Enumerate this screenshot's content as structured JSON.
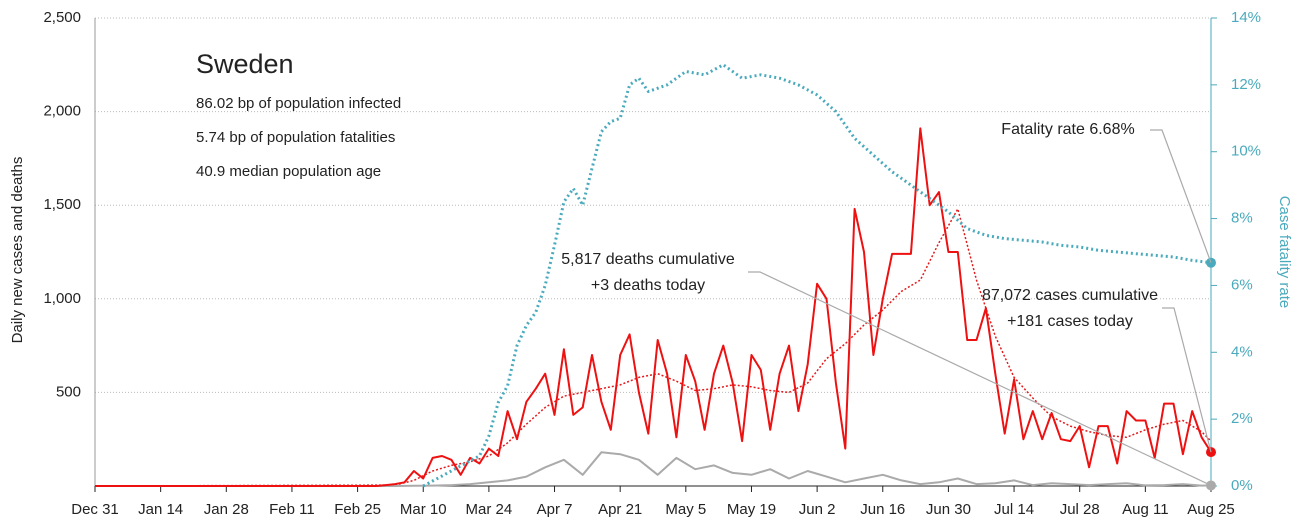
{
  "chart_data": {
    "type": "line",
    "title": "Sweden",
    "subtitle_lines": [
      "86.02 bp of population infected",
      "5.74 bp of population fatalities",
      "40.9 median population age"
    ],
    "ylabel": "Daily new cases and deaths",
    "y2label": "Case fatality rate",
    "xlim": [
      0,
      238
    ],
    "xticks": [
      {
        "value": 0,
        "label": "Dec 31"
      },
      {
        "value": 14,
        "label": "Jan 14"
      },
      {
        "value": 28,
        "label": "Jan 28"
      },
      {
        "value": 42,
        "label": "Feb 11"
      },
      {
        "value": 56,
        "label": "Feb 25"
      },
      {
        "value": 70,
        "label": "Mar 10"
      },
      {
        "value": 84,
        "label": "Mar 24"
      },
      {
        "value": 98,
        "label": "Apr 7"
      },
      {
        "value": 112,
        "label": "Apr 21"
      },
      {
        "value": 126,
        "label": "May 5"
      },
      {
        "value": 140,
        "label": "May 19"
      },
      {
        "value": 154,
        "label": "Jun 2"
      },
      {
        "value": 168,
        "label": "Jun 16"
      },
      {
        "value": 182,
        "label": "Jun 30"
      },
      {
        "value": 196,
        "label": "Jul 14"
      },
      {
        "value": 210,
        "label": "Jul 28"
      },
      {
        "value": 224,
        "label": "Aug 11"
      },
      {
        "value": 238,
        "label": "Aug 25"
      }
    ],
    "ylim": [
      0,
      2500
    ],
    "yticks": [
      {
        "value": 500,
        "label": "500"
      },
      {
        "value": 1000,
        "label": "1,000"
      },
      {
        "value": 1500,
        "label": "1,500"
      },
      {
        "value": 2000,
        "label": "2,000"
      },
      {
        "value": 2500,
        "label": "2,500"
      }
    ],
    "y2lim": [
      0,
      14
    ],
    "y2ticks": [
      {
        "value": 0,
        "label": "0%"
      },
      {
        "value": 2,
        "label": "2%"
      },
      {
        "value": 4,
        "label": "4%"
      },
      {
        "value": 6,
        "label": "6%"
      },
      {
        "value": 8,
        "label": "8%"
      },
      {
        "value": 10,
        "label": "10%"
      },
      {
        "value": 12,
        "label": "12%"
      },
      {
        "value": 14,
        "label": "14%"
      }
    ],
    "grid": true,
    "series": [
      {
        "color": "#e41a1c",
        "style": "dotted",
        "width": 1.5,
        "x": [
          0,
          64,
          68,
          72,
          76,
          80,
          84,
          88,
          92,
          96,
          100,
          104,
          108,
          112,
          116,
          120,
          124,
          128,
          132,
          136,
          140,
          144,
          148,
          152,
          156,
          160,
          164,
          168,
          172,
          176,
          180,
          184,
          188,
          192,
          196,
          200,
          204,
          208,
          212,
          216,
          220,
          224,
          228,
          232,
          236,
          238
        ],
        "values": [
          0,
          5,
          30,
          80,
          110,
          130,
          160,
          230,
          330,
          420,
          480,
          500,
          520,
          540,
          580,
          600,
          560,
          510,
          520,
          540,
          530,
          510,
          500,
          550,
          680,
          760,
          860,
          940,
          1040,
          1100,
          1300,
          1480,
          1100,
          800,
          580,
          470,
          370,
          320,
          290,
          270,
          260,
          300,
          330,
          350,
          290,
          240
        ]
      },
      {
        "color": "#aaaaaa",
        "style": "solid",
        "width": 2,
        "end_marker": true,
        "x": [
          0,
          60,
          64,
          68,
          72,
          76,
          80,
          84,
          88,
          92,
          96,
          100,
          104,
          108,
          112,
          116,
          120,
          124,
          128,
          132,
          136,
          140,
          144,
          148,
          152,
          156,
          160,
          164,
          168,
          172,
          176,
          180,
          184,
          188,
          192,
          196,
          200,
          204,
          208,
          212,
          216,
          220,
          224,
          228,
          232,
          236,
          238
        ],
        "values": [
          0,
          0,
          0,
          1,
          2,
          5,
          10,
          20,
          30,
          50,
          100,
          140,
          60,
          180,
          170,
          140,
          60,
          150,
          90,
          110,
          70,
          60,
          90,
          40,
          80,
          50,
          20,
          40,
          60,
          30,
          10,
          20,
          40,
          10,
          15,
          30,
          5,
          15,
          10,
          5,
          10,
          15,
          3,
          5,
          10,
          2,
          3
        ]
      },
      {
        "color": "#ee1111",
        "style": "solid",
        "width": 2,
        "end_marker": true,
        "x": [
          0,
          60,
          62,
          64,
          66,
          68,
          70,
          72,
          74,
          76,
          78,
          80,
          82,
          84,
          86,
          88,
          90,
          92,
          94,
          96,
          98,
          100,
          102,
          104,
          106,
          108,
          110,
          112,
          114,
          116,
          118,
          120,
          122,
          124,
          126,
          128,
          130,
          132,
          134,
          136,
          138,
          140,
          142,
          144,
          146,
          148,
          150,
          152,
          154,
          156,
          158,
          160,
          162,
          164,
          166,
          168,
          170,
          172,
          174,
          176,
          178,
          180,
          182,
          184,
          186,
          188,
          190,
          192,
          194,
          196,
          198,
          200,
          202,
          204,
          206,
          208,
          210,
          212,
          214,
          216,
          218,
          220,
          222,
          224,
          226,
          228,
          230,
          232,
          234,
          236,
          238
        ],
        "values": [
          0,
          0,
          5,
          10,
          20,
          80,
          40,
          150,
          160,
          140,
          60,
          150,
          120,
          200,
          160,
          400,
          250,
          450,
          520,
          600,
          380,
          730,
          380,
          420,
          700,
          450,
          300,
          700,
          810,
          500,
          280,
          780,
          600,
          260,
          700,
          560,
          300,
          600,
          750,
          550,
          240,
          700,
          620,
          300,
          600,
          750,
          400,
          650,
          1080,
          1000,
          550,
          200,
          1480,
          1250,
          700,
          1000,
          1240,
          1240,
          1240,
          1910,
          1500,
          1570,
          1250,
          1250,
          780,
          780,
          950,
          600,
          280,
          570,
          250,
          400,
          250,
          390,
          250,
          240,
          320,
          100,
          320,
          320,
          120,
          400,
          350,
          350,
          150,
          440,
          440,
          170,
          400,
          260,
          181
        ]
      },
      {
        "color": "#4aaabd",
        "style": "dotted",
        "width": 3,
        "axis": "y2",
        "end_marker": true,
        "x": [
          70,
          74,
          78,
          82,
          84,
          86,
          88,
          90,
          92,
          94,
          96,
          98,
          100,
          102,
          104,
          106,
          108,
          110,
          112,
          114,
          116,
          118,
          122,
          126,
          130,
          134,
          138,
          142,
          146,
          150,
          154,
          158,
          162,
          166,
          170,
          174,
          178,
          182,
          186,
          190,
          194,
          198,
          202,
          206,
          210,
          214,
          218,
          222,
          226,
          230,
          234,
          238
        ],
        "values": [
          0,
          0.3,
          0.6,
          0.9,
          1.5,
          2.5,
          3,
          4.2,
          4.8,
          5.2,
          6,
          7.2,
          8.5,
          8.9,
          8.4,
          9.5,
          10.6,
          10.9,
          11,
          12,
          12.2,
          11.8,
          12,
          12.4,
          12.3,
          12.6,
          12.2,
          12.3,
          12.2,
          12,
          11.7,
          11.2,
          10.4,
          9.9,
          9.4,
          9.0,
          8.6,
          8.2,
          7.7,
          7.5,
          7.4,
          7.35,
          7.3,
          7.2,
          7.15,
          7.05,
          7.0,
          6.95,
          6.9,
          6.85,
          6.75,
          6.68
        ]
      }
    ],
    "annotations": [
      {
        "lines": [
          "Fatality rate 6.68%"
        ],
        "series": 3
      },
      {
        "lines": [
          "5,817 deaths cumulative",
          "+3 deaths today"
        ],
        "series": 1
      },
      {
        "lines": [
          "87,072 cases cumulative",
          "+181 cases today"
        ],
        "series": 2
      }
    ]
  }
}
